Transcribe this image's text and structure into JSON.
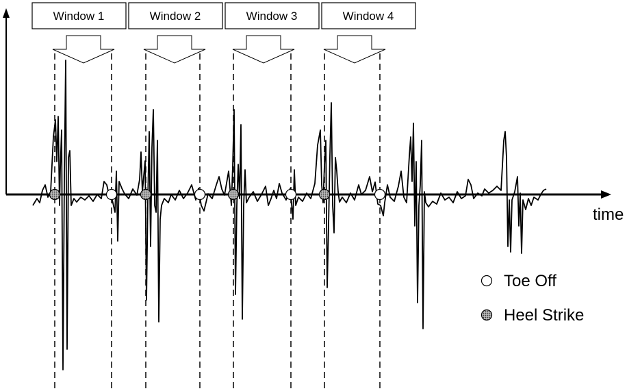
{
  "windows": [
    {
      "label": "Window 1"
    },
    {
      "label": "Window 2"
    },
    {
      "label": "Window 3"
    },
    {
      "label": "Window 4"
    }
  ],
  "axis": {
    "x_label": "time"
  },
  "legend": {
    "toe_off": "Toe Off",
    "heel_strike": "Heel Strike"
  },
  "colors": {
    "line": "#000000",
    "toe_off_fill": "#ffffff",
    "heel_strike_fill": "#808080"
  }
}
